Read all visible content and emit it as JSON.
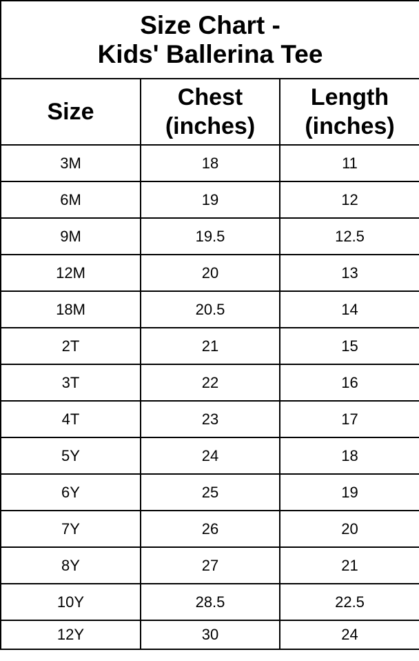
{
  "title_line1": "Size Chart -",
  "title_line2": "Kids' Ballerina Tee",
  "headers": {
    "size": "Size",
    "chest_line1": "Chest",
    "chest_line2": "(inches)",
    "length_line1": "Length",
    "length_line2": "(inches)"
  },
  "rows": [
    {
      "size": "3M",
      "chest": "18",
      "length": "11"
    },
    {
      "size": "6M",
      "chest": "19",
      "length": "12"
    },
    {
      "size": "9M",
      "chest": "19.5",
      "length": "12.5"
    },
    {
      "size": "12M",
      "chest": "20",
      "length": "13"
    },
    {
      "size": "18M",
      "chest": "20.5",
      "length": "14"
    },
    {
      "size": "2T",
      "chest": "21",
      "length": "15"
    },
    {
      "size": "3T",
      "chest": "22",
      "length": "16"
    },
    {
      "size": "4T",
      "chest": "23",
      "length": "17"
    },
    {
      "size": "5Y",
      "chest": "24",
      "length": "18"
    },
    {
      "size": "6Y",
      "chest": "25",
      "length": "19"
    },
    {
      "size": "7Y",
      "chest": "26",
      "length": "20"
    },
    {
      "size": "8Y",
      "chest": "27",
      "length": "21"
    },
    {
      "size": "10Y",
      "chest": "28.5",
      "length": "22.5"
    },
    {
      "size": "12Y",
      "chest": "30",
      "length": "24"
    }
  ]
}
